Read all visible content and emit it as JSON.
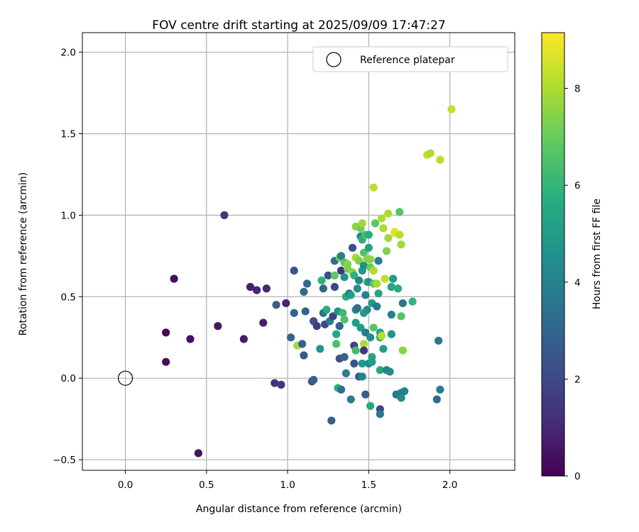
{
  "chart_data": {
    "type": "scatter",
    "title": "FOV centre drift starting at 2025/09/09 17:47:27",
    "xlabel": "Angular distance from reference (arcmin)",
    "ylabel": "Rotation from reference (arcmin)",
    "xlim": [
      -0.265,
      2.4
    ],
    "ylim": [
      -0.565,
      2.12
    ],
    "xticks": [
      0.0,
      0.5,
      1.0,
      1.5,
      2.0
    ],
    "xtick_labels": [
      "0.0",
      "0.5",
      "1.0",
      "1.5",
      "2.0"
    ],
    "yticks": [
      -0.5,
      0.0,
      0.5,
      1.0,
      1.5,
      2.0
    ],
    "ytick_labels": [
      "−0.5",
      "0.0",
      "0.5",
      "1.0",
      "1.5",
      "2.0"
    ],
    "grid": true,
    "legend": {
      "position": "top-right",
      "entries": [
        {
          "label": "Reference platepar",
          "marker": "open-circle"
        }
      ]
    },
    "reference_point": {
      "x": 0.0,
      "y": 0.0
    },
    "colorbar": {
      "label": "Hours from first FF file",
      "colormap": "viridis",
      "range": [
        0,
        9.15
      ],
      "ticks": [
        0,
        2,
        4,
        6,
        8
      ],
      "tick_labels": [
        "0",
        "2",
        "4",
        "6",
        "8"
      ]
    },
    "points": [
      {
        "x": 0.25,
        "y": 0.28,
        "c": 0.2
      },
      {
        "x": 0.25,
        "y": 0.1,
        "c": 0.3
      },
      {
        "x": 0.3,
        "y": 0.61,
        "c": 0.3
      },
      {
        "x": 0.4,
        "y": 0.24,
        "c": 0.4
      },
      {
        "x": 0.45,
        "y": -0.46,
        "c": 0.5
      },
      {
        "x": 0.57,
        "y": 0.32,
        "c": 0.6
      },
      {
        "x": 0.61,
        "y": 1.0,
        "c": 1.4
      },
      {
        "x": 0.73,
        "y": 0.24,
        "c": 0.7
      },
      {
        "x": 0.77,
        "y": 0.56,
        "c": 0.8
      },
      {
        "x": 0.81,
        "y": 0.54,
        "c": 0.9
      },
      {
        "x": 0.85,
        "y": 0.34,
        "c": 0.8
      },
      {
        "x": 0.87,
        "y": 0.55,
        "c": 1.0
      },
      {
        "x": 0.92,
        "y": -0.03,
        "c": 1.3
      },
      {
        "x": 0.96,
        "y": -0.04,
        "c": 1.4
      },
      {
        "x": 0.99,
        "y": 0.46,
        "c": 0.9
      },
      {
        "x": 0.93,
        "y": 0.45,
        "c": 2.7
      },
      {
        "x": 1.02,
        "y": 0.25,
        "c": 3.0
      },
      {
        "x": 1.04,
        "y": 0.66,
        "c": 2.3
      },
      {
        "x": 1.04,
        "y": 0.4,
        "c": 3.0
      },
      {
        "x": 1.06,
        "y": 0.2,
        "c": 7.9
      },
      {
        "x": 1.09,
        "y": 0.21,
        "c": 2.8
      },
      {
        "x": 1.1,
        "y": 0.53,
        "c": 3.2
      },
      {
        "x": 1.1,
        "y": 0.14,
        "c": 2.5
      },
      {
        "x": 1.11,
        "y": 0.41,
        "c": 3.0
      },
      {
        "x": 1.12,
        "y": 0.58,
        "c": 3.1
      },
      {
        "x": 1.15,
        "y": -0.02,
        "c": 2.5
      },
      {
        "x": 1.16,
        "y": -0.01,
        "c": 2.8
      },
      {
        "x": 1.16,
        "y": 0.35,
        "c": 2.2
      },
      {
        "x": 1.18,
        "y": 0.32,
        "c": 1.6
      },
      {
        "x": 1.2,
        "y": 0.18,
        "c": 4.7
      },
      {
        "x": 1.21,
        "y": 0.6,
        "c": 5.9
      },
      {
        "x": 1.22,
        "y": 0.55,
        "c": 3.1
      },
      {
        "x": 1.22,
        "y": 0.4,
        "c": 3.5
      },
      {
        "x": 1.23,
        "y": 0.33,
        "c": 2.0
      },
      {
        "x": 1.24,
        "y": 0.42,
        "c": 5.6
      },
      {
        "x": 1.25,
        "y": 0.63,
        "c": 2.2
      },
      {
        "x": 1.26,
        "y": 0.35,
        "c": 3.8
      },
      {
        "x": 1.27,
        "y": -0.26,
        "c": 2.8
      },
      {
        "x": 1.28,
        "y": 0.38,
        "c": 1.8
      },
      {
        "x": 1.29,
        "y": 0.56,
        "c": 2.0
      },
      {
        "x": 1.29,
        "y": 0.72,
        "c": 3.3
      },
      {
        "x": 1.29,
        "y": 0.63,
        "c": 6.8
      },
      {
        "x": 1.3,
        "y": 0.27,
        "c": 5.4
      },
      {
        "x": 1.3,
        "y": 0.21,
        "c": 6.5
      },
      {
        "x": 1.31,
        "y": -0.06,
        "c": 5.8
      },
      {
        "x": 1.31,
        "y": 0.41,
        "c": 4.6
      },
      {
        "x": 1.32,
        "y": 0.12,
        "c": 2.3
      },
      {
        "x": 1.32,
        "y": 0.32,
        "c": 2.9
      },
      {
        "x": 1.32,
        "y": 0.74,
        "c": 7.1
      },
      {
        "x": 1.33,
        "y": 0.75,
        "c": 3.9
      },
      {
        "x": 1.33,
        "y": 0.66,
        "c": 1.4
      },
      {
        "x": 1.34,
        "y": 0.4,
        "c": 6.2
      },
      {
        "x": 1.35,
        "y": 0.36,
        "c": 6.5
      },
      {
        "x": 1.35,
        "y": 0.71,
        "c": 6.7
      },
      {
        "x": 1.35,
        "y": 0.62,
        "c": 4.6
      },
      {
        "x": 1.35,
        "y": 0.13,
        "c": 2.9
      },
      {
        "x": 1.33,
        "y": -0.07,
        "c": 3.4
      },
      {
        "x": 1.36,
        "y": 0.5,
        "c": 5.7
      },
      {
        "x": 1.36,
        "y": 0.03,
        "c": 3.8
      },
      {
        "x": 1.37,
        "y": 0.7,
        "c": 7.5
      },
      {
        "x": 1.37,
        "y": 0.67,
        "c": 7.3
      },
      {
        "x": 1.38,
        "y": 0.52,
        "c": 3.6
      },
      {
        "x": 1.39,
        "y": 0.51,
        "c": 5.1
      },
      {
        "x": 1.39,
        "y": -0.13,
        "c": 3.9
      },
      {
        "x": 1.4,
        "y": 0.65,
        "c": 7.6
      },
      {
        "x": 1.4,
        "y": 0.8,
        "c": 2.2
      },
      {
        "x": 1.41,
        "y": 0.63,
        "c": 5.9
      },
      {
        "x": 1.41,
        "y": 0.2,
        "c": 1.9
      },
      {
        "x": 1.41,
        "y": 0.09,
        "c": 2.4
      },
      {
        "x": 1.42,
        "y": 0.17,
        "c": 6.3
      },
      {
        "x": 1.42,
        "y": 0.34,
        "c": 5.1
      },
      {
        "x": 1.42,
        "y": 0.42,
        "c": 4.1
      },
      {
        "x": 1.42,
        "y": 0.74,
        "c": 7.9
      },
      {
        "x": 1.42,
        "y": 0.93,
        "c": 7.5
      },
      {
        "x": 1.43,
        "y": 0.43,
        "c": 3.3
      },
      {
        "x": 1.43,
        "y": 0.55,
        "c": 4.5
      },
      {
        "x": 1.44,
        "y": 0.01,
        "c": 2.5
      },
      {
        "x": 1.44,
        "y": 0.6,
        "c": 4.1
      },
      {
        "x": 1.44,
        "y": 0.72,
        "c": 7.3
      },
      {
        "x": 1.45,
        "y": 0.87,
        "c": 4.2
      },
      {
        "x": 1.45,
        "y": 0.92,
        "c": 7.1
      },
      {
        "x": 1.45,
        "y": 0.31,
        "c": 5.1
      },
      {
        "x": 1.46,
        "y": 0.01,
        "c": 4.2
      },
      {
        "x": 1.46,
        "y": 0.09,
        "c": 4.8
      },
      {
        "x": 1.46,
        "y": 0.66,
        "c": 4.9
      },
      {
        "x": 1.46,
        "y": 0.85,
        "c": 5.9
      },
      {
        "x": 1.46,
        "y": 0.95,
        "c": 7.8
      },
      {
        "x": 1.47,
        "y": 0.21,
        "c": 8.0
      },
      {
        "x": 1.47,
        "y": 0.17,
        "c": 1.4
      },
      {
        "x": 1.47,
        "y": 0.4,
        "c": 5.0
      },
      {
        "x": 1.47,
        "y": 0.77,
        "c": 6.6
      },
      {
        "x": 1.47,
        "y": 0.69,
        "c": 4.4
      },
      {
        "x": 1.48,
        "y": 0.51,
        "c": 4.0
      },
      {
        "x": 1.48,
        "y": -0.1,
        "c": 2.7
      },
      {
        "x": 1.48,
        "y": 0.28,
        "c": 3.9
      },
      {
        "x": 1.48,
        "y": 0.88,
        "c": 6.4
      },
      {
        "x": 1.49,
        "y": 0.59,
        "c": 6.9
      },
      {
        "x": 1.49,
        "y": 0.42,
        "c": 4.4
      },
      {
        "x": 1.49,
        "y": 0.73,
        "c": 7.4
      },
      {
        "x": 1.5,
        "y": 0.09,
        "c": 4.3
      },
      {
        "x": 1.5,
        "y": 0.88,
        "c": 5.7
      },
      {
        "x": 1.5,
        "y": 0.8,
        "c": 5.2
      },
      {
        "x": 1.5,
        "y": 0.59,
        "c": 4.5
      },
      {
        "x": 1.51,
        "y": 0.25,
        "c": 4.4
      },
      {
        "x": 1.51,
        "y": -0.17,
        "c": 5.5
      },
      {
        "x": 1.51,
        "y": 0.73,
        "c": 7.5
      },
      {
        "x": 1.51,
        "y": 0.68,
        "c": 6.9
      },
      {
        "x": 1.52,
        "y": 0.46,
        "c": 4.9
      },
      {
        "x": 1.52,
        "y": 0.13,
        "c": 5.4
      },
      {
        "x": 1.52,
        "y": 0.1,
        "c": 5.1
      },
      {
        "x": 1.53,
        "y": 1.17,
        "c": 8.2
      },
      {
        "x": 1.53,
        "y": 0.31,
        "c": 6.7
      },
      {
        "x": 1.53,
        "y": 0.58,
        "c": 6.8
      },
      {
        "x": 1.53,
        "y": 0.66,
        "c": 8.0
      },
      {
        "x": 1.54,
        "y": 0.95,
        "c": 6.8
      },
      {
        "x": 1.55,
        "y": 0.58,
        "c": 7.9
      },
      {
        "x": 1.55,
        "y": 0.44,
        "c": 3.6
      },
      {
        "x": 1.56,
        "y": 0.72,
        "c": 3.8
      },
      {
        "x": 1.56,
        "y": 0.52,
        "c": 5.3
      },
      {
        "x": 1.57,
        "y": 0.25,
        "c": 5.9
      },
      {
        "x": 1.57,
        "y": -0.19,
        "c": 2.0
      },
      {
        "x": 1.57,
        "y": -0.22,
        "c": 3.6
      },
      {
        "x": 1.57,
        "y": 0.05,
        "c": 5.4
      },
      {
        "x": 1.57,
        "y": 0.28,
        "c": 5.2
      },
      {
        "x": 1.58,
        "y": 0.98,
        "c": 8.0
      },
      {
        "x": 1.58,
        "y": 0.26,
        "c": 8.1
      },
      {
        "x": 1.59,
        "y": 0.18,
        "c": 5.1
      },
      {
        "x": 1.59,
        "y": 0.92,
        "c": 8.0
      },
      {
        "x": 1.6,
        "y": 0.61,
        "c": 8.3
      },
      {
        "x": 1.61,
        "y": 0.05,
        "c": 4.0
      },
      {
        "x": 1.61,
        "y": 0.78,
        "c": 7.4
      },
      {
        "x": 1.62,
        "y": 1.01,
        "c": 8.0
      },
      {
        "x": 1.62,
        "y": 0.86,
        "c": 7.8
      },
      {
        "x": 1.63,
        "y": 0.04,
        "c": 4.3
      },
      {
        "x": 1.64,
        "y": 0.27,
        "c": 4.7
      },
      {
        "x": 1.64,
        "y": 0.39,
        "c": 3.9
      },
      {
        "x": 1.64,
        "y": 0.56,
        "c": 5.3
      },
      {
        "x": 1.65,
        "y": 0.61,
        "c": 4.9
      },
      {
        "x": 1.66,
        "y": 0.9,
        "c": 9.1
      },
      {
        "x": 1.66,
        "y": 0.89,
        "c": 8.6
      },
      {
        "x": 1.67,
        "y": -0.1,
        "c": 3.6
      },
      {
        "x": 1.68,
        "y": 0.55,
        "c": 5.6
      },
      {
        "x": 1.69,
        "y": 1.02,
        "c": 6.7
      },
      {
        "x": 1.69,
        "y": 0.88,
        "c": 8.1
      },
      {
        "x": 1.7,
        "y": -0.09,
        "c": 3.8
      },
      {
        "x": 1.7,
        "y": 0.82,
        "c": 7.8
      },
      {
        "x": 1.7,
        "y": 0.38,
        "c": 6.6
      },
      {
        "x": 1.7,
        "y": -0.12,
        "c": 4.3
      },
      {
        "x": 1.71,
        "y": 0.17,
        "c": 7.5
      },
      {
        "x": 1.71,
        "y": 0.46,
        "c": 3.7
      },
      {
        "x": 1.72,
        "y": -0.08,
        "c": 3.9
      },
      {
        "x": 1.77,
        "y": 0.47,
        "c": 6.0
      },
      {
        "x": 1.86,
        "y": 1.37,
        "c": 8.3
      },
      {
        "x": 1.88,
        "y": 1.38,
        "c": 8.0
      },
      {
        "x": 1.92,
        "y": -0.13,
        "c": 3.2
      },
      {
        "x": 1.93,
        "y": 0.23,
        "c": 3.6
      },
      {
        "x": 1.94,
        "y": -0.07,
        "c": 3.9
      },
      {
        "x": 1.94,
        "y": 1.34,
        "c": 8.2
      },
      {
        "x": 2.01,
        "y": 1.65,
        "c": 8.3
      }
    ]
  }
}
